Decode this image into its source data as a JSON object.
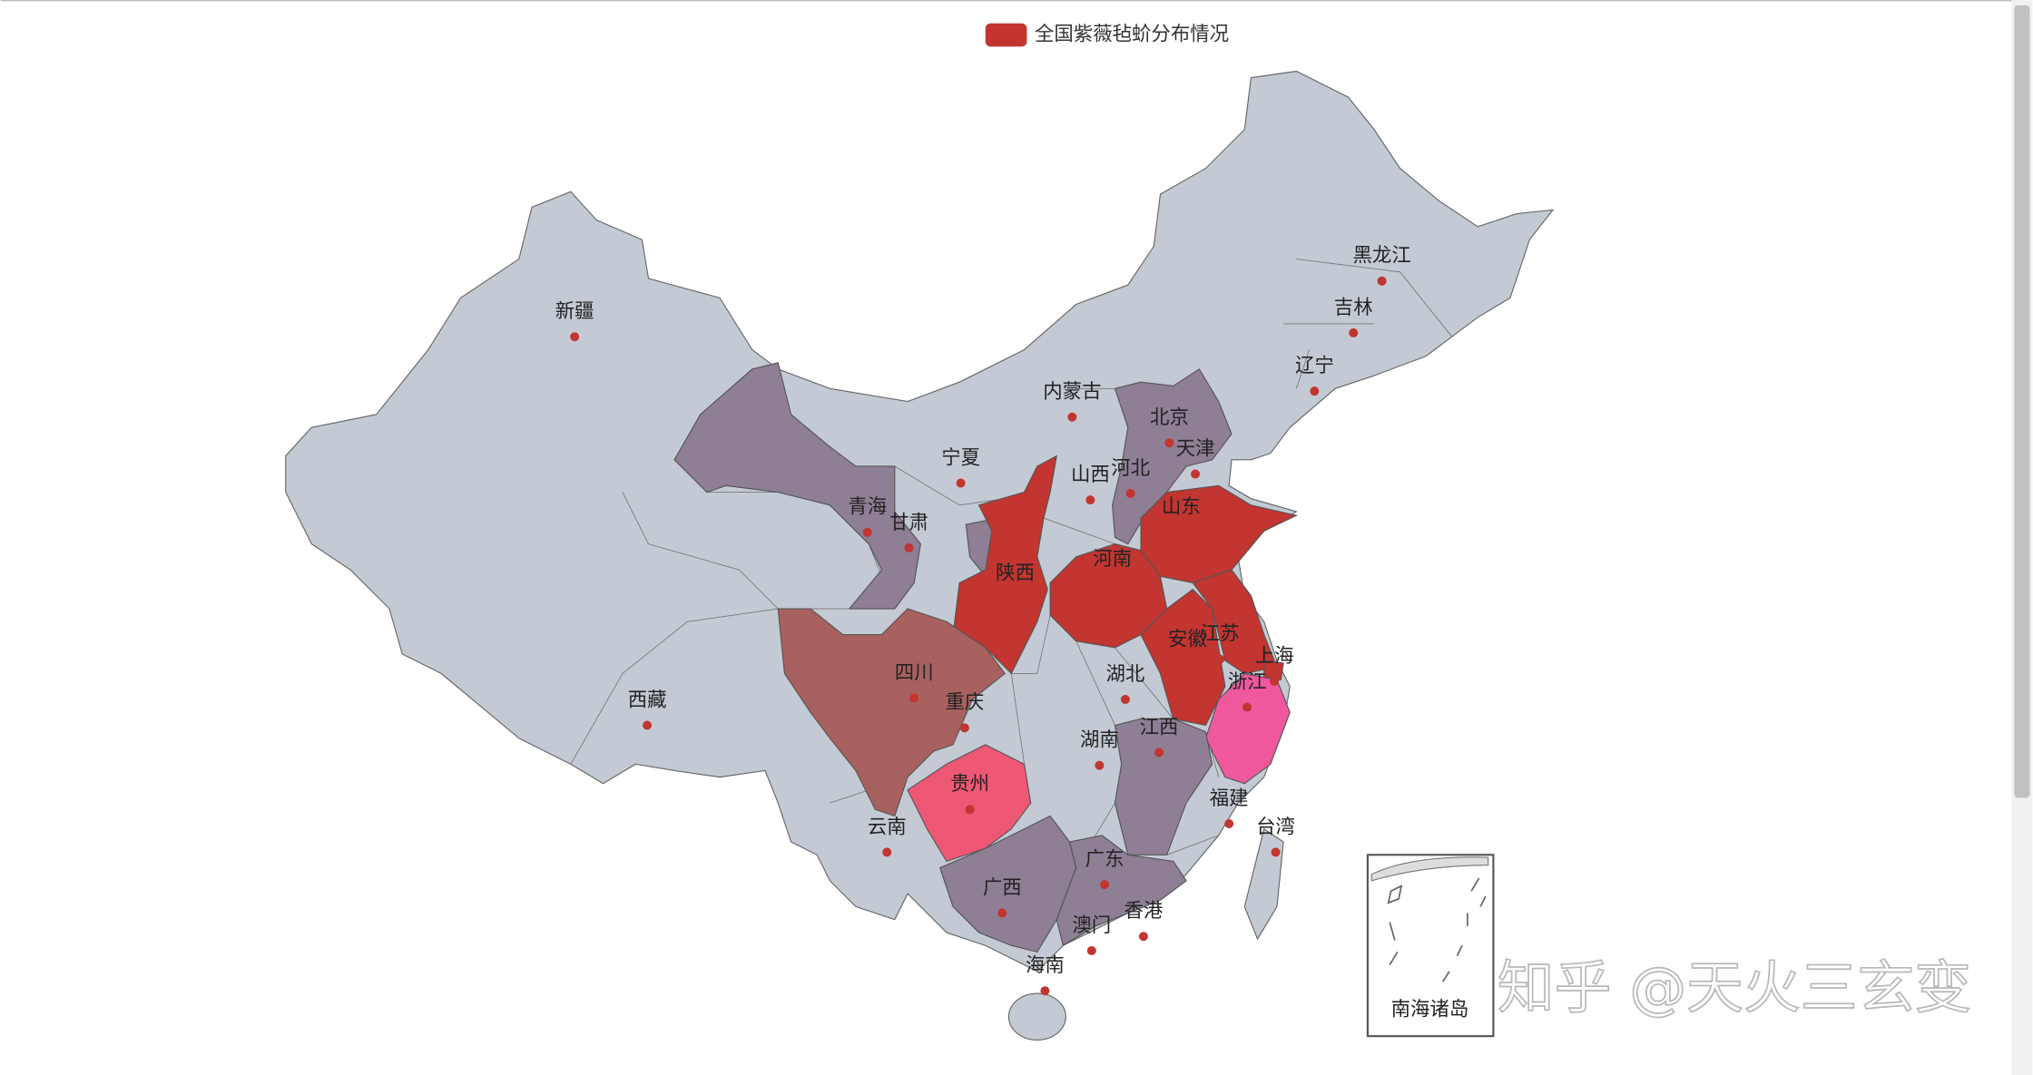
{
  "legend": {
    "name": "全国紫薇毡蚧分布情况",
    "color": "#c23531"
  },
  "base_color": "#c4cad3",
  "regions": [
    {
      "name": "新疆"
    },
    {
      "name": "西藏"
    },
    {
      "name": "青海"
    },
    {
      "name": "甘肃",
      "color": "#8e7f94"
    },
    {
      "name": "宁夏"
    },
    {
      "name": "内蒙古"
    },
    {
      "name": "黑龙江"
    },
    {
      "name": "吉林"
    },
    {
      "name": "辽宁"
    },
    {
      "name": "北京"
    },
    {
      "name": "天津"
    },
    {
      "name": "河北",
      "color": "#8e7f94"
    },
    {
      "name": "山西"
    },
    {
      "name": "山东",
      "color": "#c23531"
    },
    {
      "name": "河南",
      "color": "#c23531"
    },
    {
      "name": "陕西",
      "color": "#c23531"
    },
    {
      "name": "四川",
      "color": "#a8615f"
    },
    {
      "name": "重庆"
    },
    {
      "name": "湖北"
    },
    {
      "name": "安徽",
      "color": "#c23531"
    },
    {
      "name": "江苏",
      "color": "#c23531"
    },
    {
      "name": "上海",
      "color": "#c23531"
    },
    {
      "name": "浙江",
      "color": "#f0589e"
    },
    {
      "name": "江西",
      "color": "#8e7f94"
    },
    {
      "name": "湖南"
    },
    {
      "name": "贵州",
      "color": "#ef5875"
    },
    {
      "name": "云南"
    },
    {
      "name": "福建"
    },
    {
      "name": "台湾"
    },
    {
      "name": "广西",
      "color": "#8e7f94"
    },
    {
      "name": "广东",
      "color": "#8e7f94"
    },
    {
      "name": "澳门"
    },
    {
      "name": "香港"
    },
    {
      "name": "海南"
    }
  ],
  "inset": {
    "label": "南海诸岛"
  },
  "watermark": "知乎 @天火三玄变"
}
